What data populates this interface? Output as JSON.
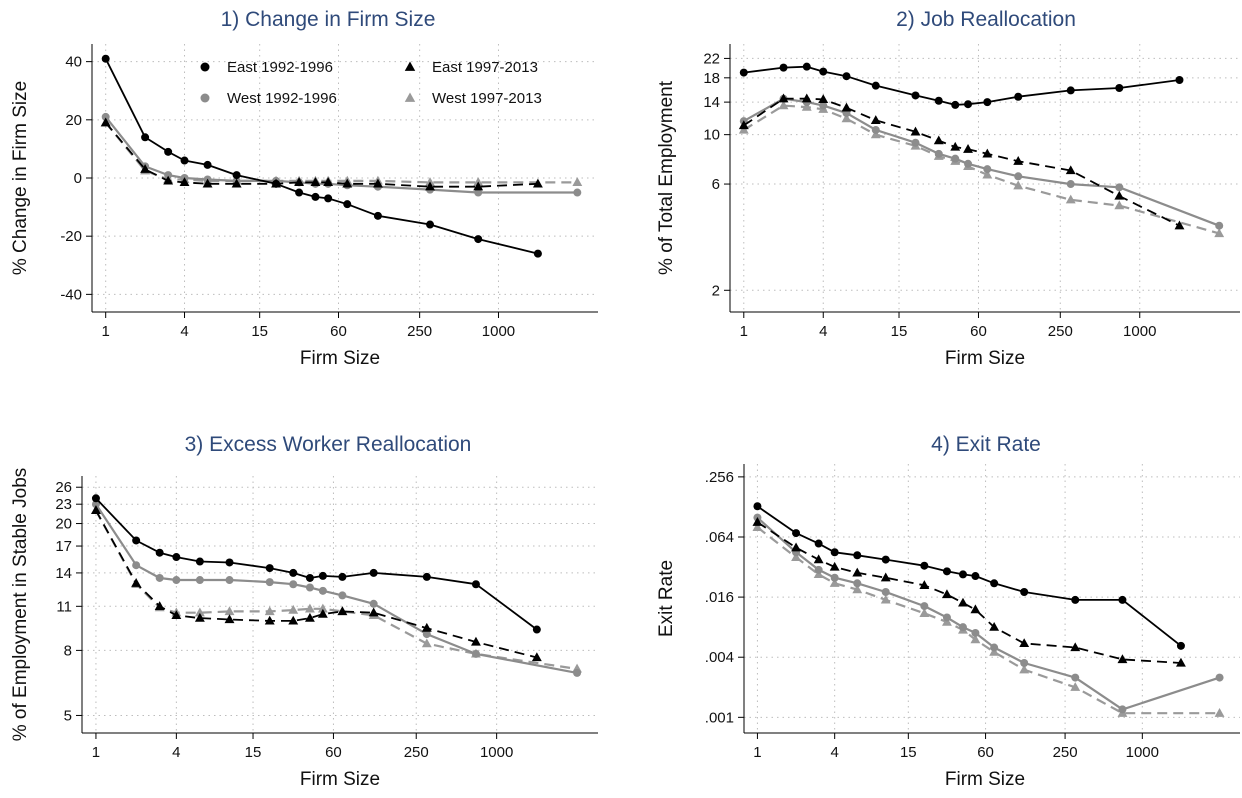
{
  "style": {
    "east_color": "#000000",
    "west_color": "#8c8c8c",
    "west_dash_color": "#9a9a9a",
    "grid_color": "#bdbdbd",
    "title_color": "#2f4a7a"
  },
  "legend": {
    "placement": "top-right inside panel 1",
    "entries": [
      {
        "label": "East 1992-1996",
        "series": "east_early"
      },
      {
        "label": "West 1992-1996",
        "series": "west_early"
      },
      {
        "label": "East 1997-2013",
        "series": "east_late"
      },
      {
        "label": "West 1997-2013",
        "series": "west_late"
      }
    ]
  },
  "chart_data": [
    {
      "type": "line",
      "title": "1) Change in Firm Size",
      "xlabel": "Firm Size",
      "ylabel": "% Change in Firm Size",
      "x_scale": "log",
      "y_scale": "linear",
      "grid": true,
      "xticks": [
        1,
        4,
        15,
        60,
        250,
        1000
      ],
      "xtick_labels": [
        "1",
        "4",
        "15",
        "60",
        "250",
        "1000"
      ],
      "yticks": [
        -40,
        -20,
        0,
        20,
        40
      ],
      "ytick_labels": [
        "-40",
        "-20",
        "0",
        "20",
        "40"
      ],
      "ylim": [
        -44,
        44
      ],
      "xlim": [
        0.8,
        5000
      ],
      "series": [
        {
          "key": "east_early",
          "name": "East 1992-1996",
          "x": [
            1,
            2,
            3,
            4,
            6,
            10,
            20,
            30,
            40,
            50,
            70,
            120,
            300,
            700,
            2000
          ],
          "y": [
            41,
            14,
            9,
            6,
            4.5,
            1,
            -2,
            -5,
            -6.5,
            -7,
            -9,
            -13,
            -16,
            -21,
            -26
          ]
        },
        {
          "key": "west_early",
          "name": "West 1992-1996",
          "x": [
            1,
            2,
            3,
            4,
            6,
            10,
            20,
            30,
            40,
            50,
            70,
            120,
            300,
            700,
            4000
          ],
          "y": [
            21,
            4,
            1,
            0,
            -0.5,
            -1,
            -1,
            -1.5,
            -2,
            -2,
            -2.5,
            -3,
            -4,
            -5,
            -5
          ]
        },
        {
          "key": "east_late",
          "name": "East 1997-2013",
          "x": [
            1,
            2,
            3,
            4,
            6,
            10,
            20,
            30,
            40,
            50,
            70,
            120,
            300,
            700,
            2000
          ],
          "y": [
            19,
            3,
            -1,
            -1.5,
            -2,
            -2,
            -2,
            -1.5,
            -1.5,
            -1.5,
            -2,
            -2,
            -3,
            -3,
            -2
          ]
        },
        {
          "key": "west_late",
          "name": "West 1997-2013",
          "x": [
            1,
            2,
            3,
            4,
            6,
            10,
            20,
            30,
            40,
            50,
            70,
            120,
            300,
            700,
            4000
          ],
          "y": [
            19,
            2.5,
            -0.5,
            -0.5,
            -1,
            -1,
            -1,
            -1,
            -1,
            -1,
            -1,
            -1,
            -1.5,
            -1.5,
            -1.5
          ]
        }
      ]
    },
    {
      "type": "line",
      "title": "2) Job Reallocation",
      "xlabel": "Firm Size",
      "ylabel": "% of Total Employment",
      "x_scale": "log",
      "y_scale": "log",
      "grid": true,
      "xticks": [
        1,
        4,
        15,
        60,
        250,
        1000
      ],
      "xtick_labels": [
        "1",
        "4",
        "15",
        "60",
        "250",
        "1000"
      ],
      "yticks": [
        2,
        6,
        10,
        14,
        18,
        22
      ],
      "ytick_labels": [
        "2",
        "6",
        "10",
        "14",
        "18",
        "22"
      ],
      "ylim": [
        1.7,
        24
      ],
      "xlim": [
        0.8,
        5000
      ],
      "series": [
        {
          "key": "east_early",
          "name": "East 1992-1996",
          "x": [
            1,
            2,
            3,
            4,
            6,
            10,
            20,
            30,
            40,
            50,
            70,
            120,
            300,
            700,
            2000
          ],
          "y": [
            19,
            20,
            20.2,
            19.2,
            18.3,
            16.6,
            15,
            14.2,
            13.6,
            13.7,
            14,
            14.8,
            15.8,
            16.2,
            17.6
          ]
        },
        {
          "key": "west_early",
          "name": "West 1992-1996",
          "x": [
            1,
            2,
            3,
            4,
            6,
            10,
            20,
            30,
            40,
            50,
            70,
            120,
            300,
            700,
            4000
          ],
          "y": [
            11.5,
            14.5,
            14,
            13.5,
            12.5,
            10.5,
            9.2,
            8.2,
            7.8,
            7.4,
            7,
            6.5,
            6,
            5.8,
            3.9
          ]
        },
        {
          "key": "east_late",
          "name": "East 1997-2013",
          "x": [
            1,
            2,
            3,
            4,
            6,
            10,
            20,
            30,
            40,
            50,
            70,
            120,
            300,
            700,
            2000
          ],
          "y": [
            11,
            14.5,
            14.5,
            14.4,
            13.2,
            11.6,
            10.3,
            9.4,
            8.8,
            8.6,
            8.2,
            7.6,
            6.9,
            5.3,
            3.9
          ]
        },
        {
          "key": "west_late",
          "name": "West 1997-2013",
          "x": [
            1,
            2,
            3,
            4,
            6,
            10,
            20,
            30,
            40,
            50,
            70,
            120,
            300,
            700,
            4000
          ],
          "y": [
            10.5,
            13.5,
            13.3,
            13,
            11.8,
            10,
            8.9,
            8,
            7.6,
            7.2,
            6.6,
            5.9,
            5.1,
            4.8,
            3.6
          ]
        }
      ]
    },
    {
      "type": "line",
      "title": "3) Excess Worker Reallocation",
      "xlabel": "Firm Size",
      "ylabel": "% of Employment in Stable Jobs",
      "x_scale": "log",
      "y_scale": "log",
      "grid": true,
      "xticks": [
        1,
        4,
        15,
        60,
        250,
        1000
      ],
      "xtick_labels": [
        "1",
        "4",
        "15",
        "60",
        "250",
        "1000"
      ],
      "yticks": [
        5,
        8,
        11,
        14,
        17,
        20,
        23,
        26
      ],
      "ytick_labels": [
        "5",
        "8",
        "11",
        "14",
        "17",
        "20",
        "23",
        "26"
      ],
      "ylim": [
        4.6,
        27
      ],
      "xlim": [
        0.8,
        5000
      ],
      "series": [
        {
          "key": "east_early",
          "name": "East 1992-1996",
          "x": [
            1,
            2,
            3,
            4,
            6,
            10,
            20,
            30,
            40,
            50,
            70,
            120,
            300,
            700,
            2000
          ],
          "y": [
            24,
            17.7,
            16.2,
            15.7,
            15.2,
            15.1,
            14.5,
            14,
            13.5,
            13.7,
            13.6,
            14,
            13.6,
            12.9,
            9.3
          ]
        },
        {
          "key": "west_early",
          "name": "West 1992-1996",
          "x": [
            1,
            2,
            3,
            4,
            6,
            10,
            20,
            30,
            40,
            50,
            70,
            120,
            300,
            700,
            4000
          ],
          "y": [
            23,
            14.8,
            13.5,
            13.3,
            13.3,
            13.3,
            13.1,
            12.9,
            12.6,
            12.3,
            11.9,
            11.2,
            9,
            7.8,
            6.8
          ]
        },
        {
          "key": "east_late",
          "name": "East 1997-2013",
          "x": [
            1,
            2,
            3,
            4,
            6,
            10,
            20,
            30,
            40,
            50,
            70,
            120,
            300,
            700,
            2000
          ],
          "y": [
            22,
            13,
            11,
            10.3,
            10.1,
            10,
            9.9,
            9.9,
            10.1,
            10.4,
            10.6,
            10.5,
            9.4,
            8.5,
            7.6
          ]
        },
        {
          "key": "west_late",
          "name": "West 1997-2013",
          "x": [
            1,
            2,
            3,
            4,
            6,
            10,
            20,
            30,
            40,
            50,
            70,
            120,
            300,
            700,
            4000
          ],
          "y": [
            22,
            12.9,
            10.9,
            10.5,
            10.5,
            10.6,
            10.6,
            10.7,
            10.8,
            10.8,
            10.6,
            10.3,
            8.4,
            7.8,
            7
          ]
        }
      ]
    },
    {
      "type": "line",
      "title": "4) Exit Rate",
      "xlabel": "Firm Size",
      "ylabel": "Exit Rate",
      "x_scale": "log",
      "y_scale": "log",
      "grid": true,
      "xticks": [
        1,
        4,
        15,
        60,
        250,
        1000
      ],
      "xtick_labels": [
        "1",
        "4",
        "15",
        "60",
        "250",
        "1000"
      ],
      "yticks": [
        0.001,
        0.004,
        0.016,
        0.064,
        0.256
      ],
      "ytick_labels": [
        ".001",
        ".004",
        ".016",
        ".064",
        ".256"
      ],
      "ylim": [
        0.0008,
        0.3
      ],
      "xlim": [
        0.8,
        5000
      ],
      "series": [
        {
          "key": "east_early",
          "name": "East 1992-1996",
          "x": [
            1,
            2,
            3,
            4,
            6,
            10,
            20,
            30,
            40,
            50,
            70,
            120,
            300,
            700,
            2000
          ],
          "y": [
            0.13,
            0.07,
            0.055,
            0.045,
            0.042,
            0.038,
            0.033,
            0.029,
            0.027,
            0.026,
            0.022,
            0.018,
            0.015,
            0.015,
            0.0052
          ]
        },
        {
          "key": "west_early",
          "name": "West 1992-1996",
          "x": [
            1,
            2,
            3,
            4,
            6,
            10,
            20,
            30,
            40,
            50,
            70,
            120,
            300,
            700,
            4000
          ],
          "y": [
            0.1,
            0.045,
            0.03,
            0.025,
            0.022,
            0.018,
            0.013,
            0.01,
            0.008,
            0.007,
            0.005,
            0.0035,
            0.0025,
            0.0012,
            0.0025
          ]
        },
        {
          "key": "east_late",
          "name": "East 1997-2013",
          "x": [
            1,
            2,
            3,
            4,
            6,
            10,
            20,
            30,
            40,
            50,
            70,
            120,
            300,
            700,
            2000
          ],
          "y": [
            0.09,
            0.05,
            0.038,
            0.032,
            0.028,
            0.025,
            0.021,
            0.017,
            0.014,
            0.012,
            0.008,
            0.0055,
            0.005,
            0.0038,
            0.0035
          ]
        },
        {
          "key": "west_late",
          "name": "West 1997-2013",
          "x": [
            1,
            2,
            3,
            4,
            6,
            10,
            20,
            30,
            40,
            50,
            70,
            120,
            300,
            700,
            4000
          ],
          "y": [
            0.08,
            0.04,
            0.027,
            0.022,
            0.019,
            0.015,
            0.011,
            0.009,
            0.0075,
            0.006,
            0.0045,
            0.003,
            0.002,
            0.0011,
            0.0011
          ]
        }
      ]
    }
  ]
}
